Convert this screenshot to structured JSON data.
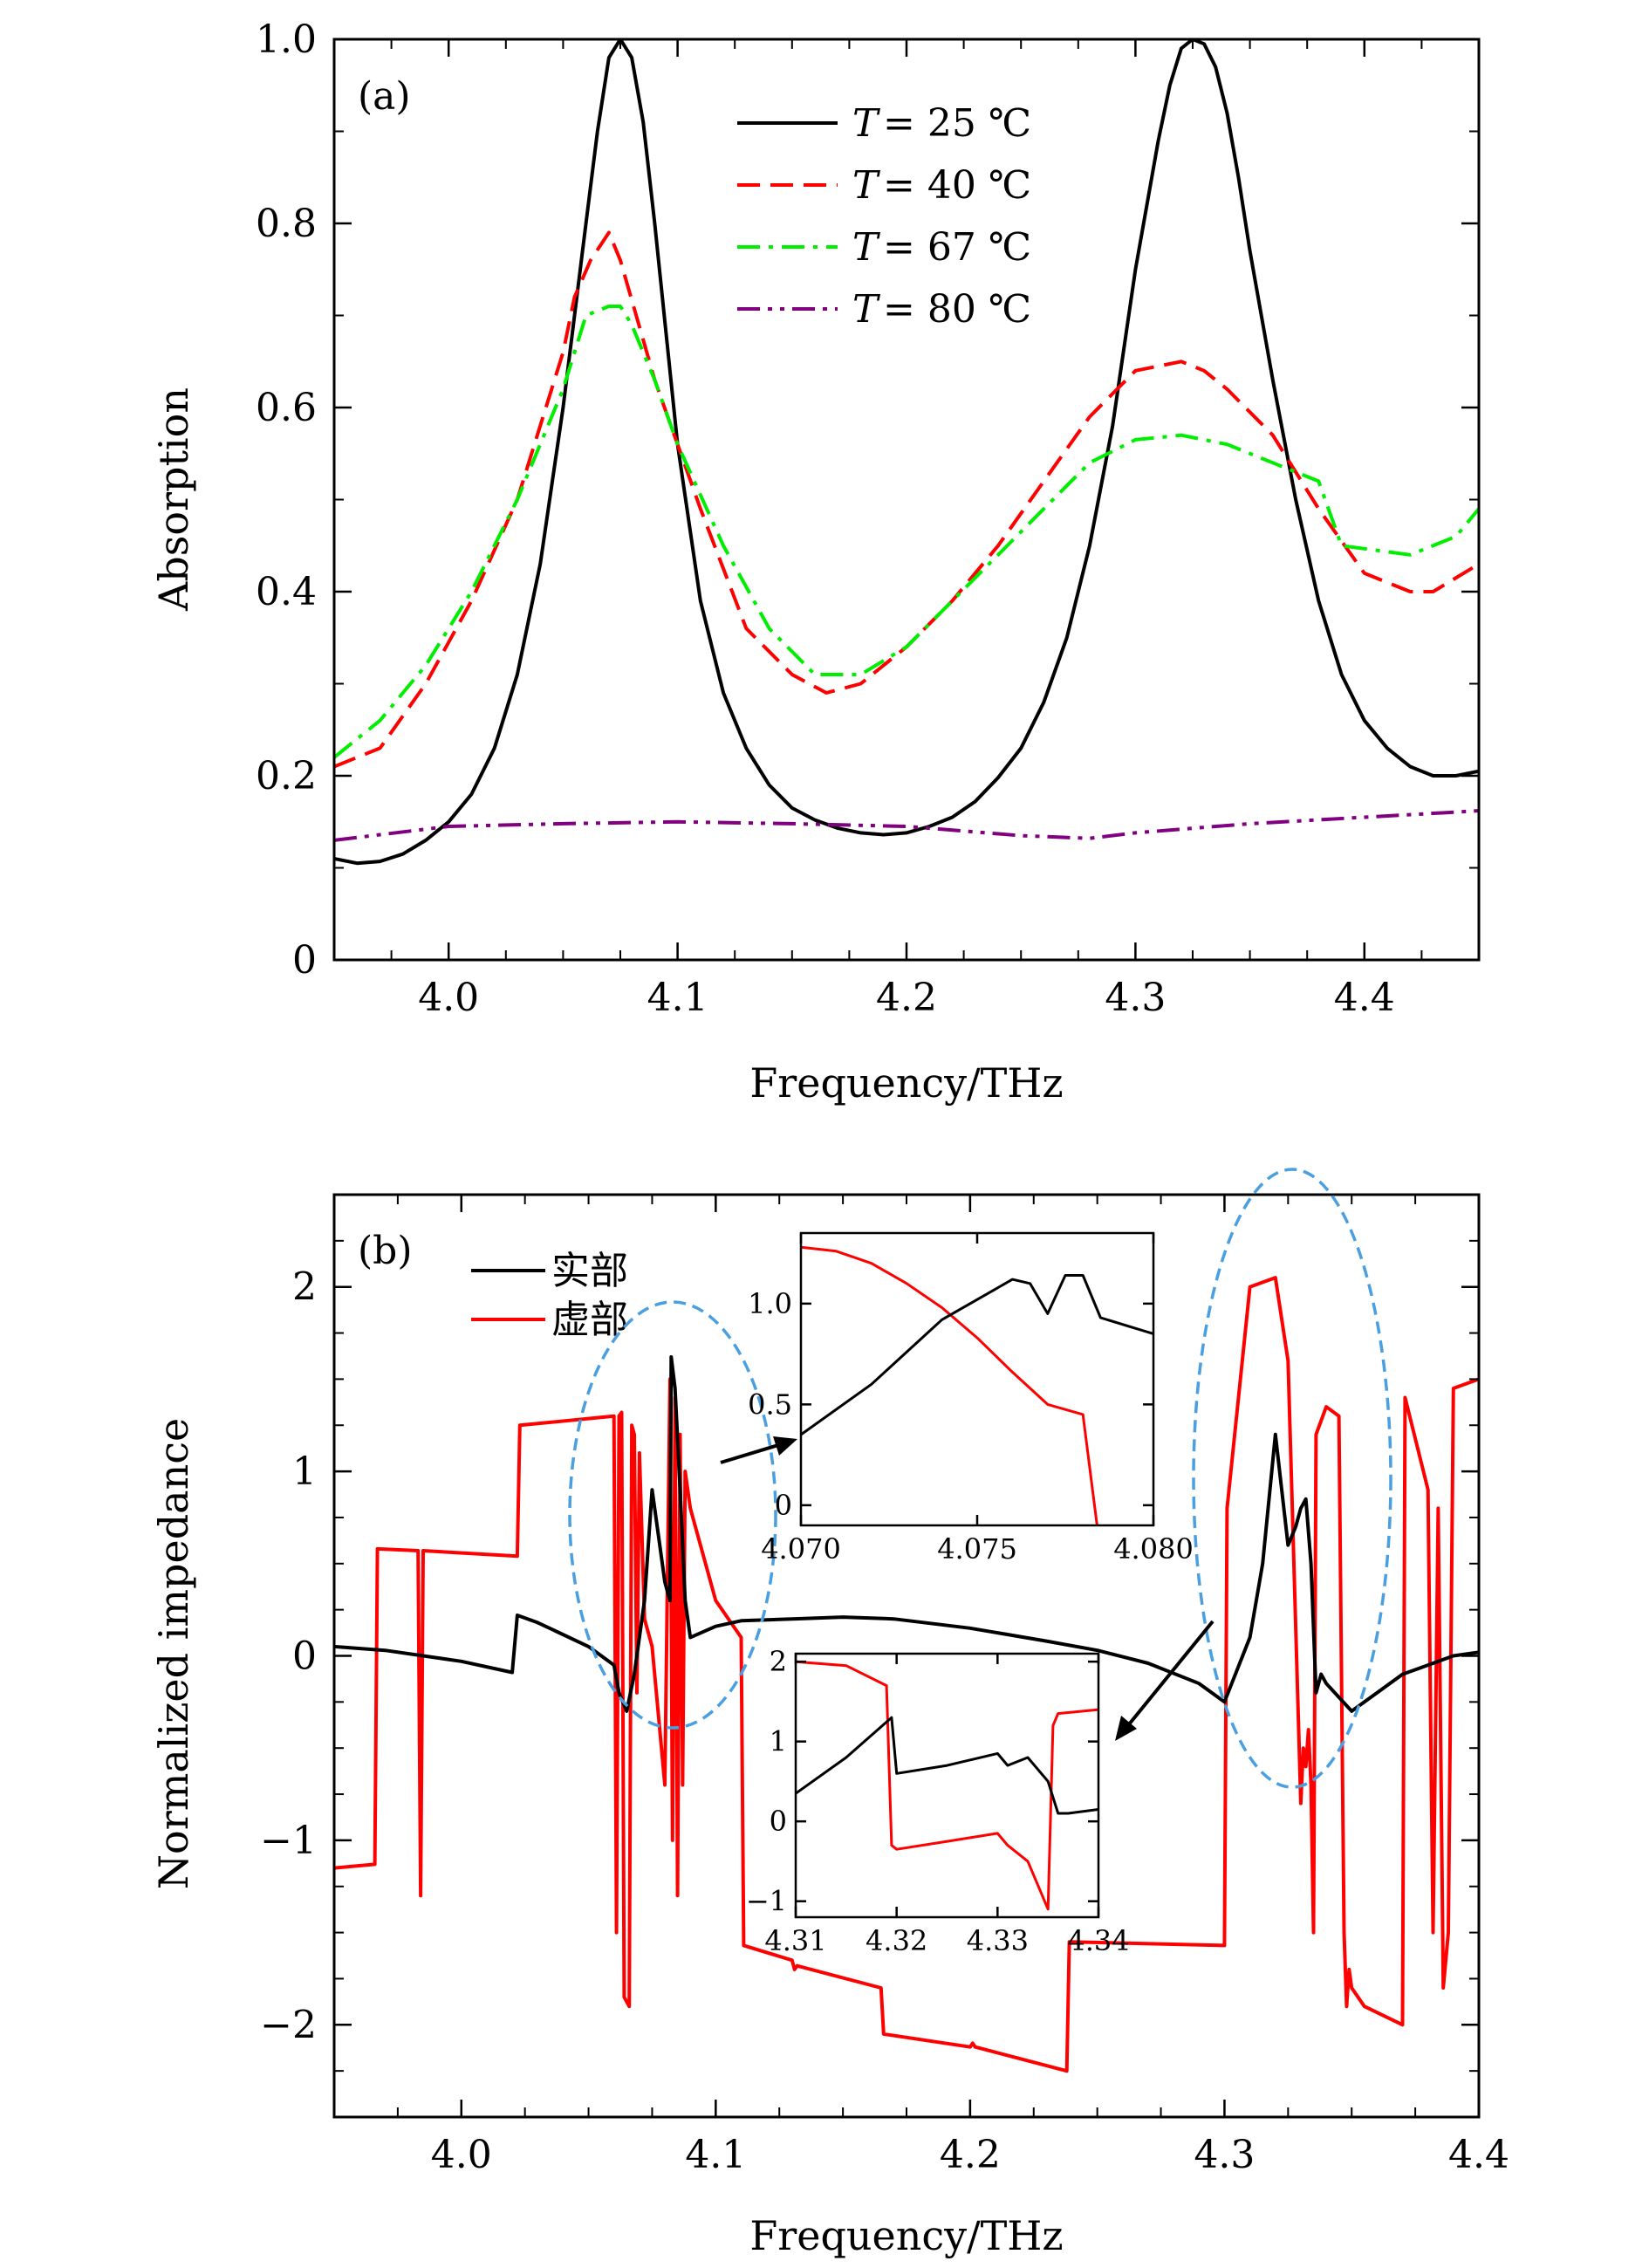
{
  "chart_data": [
    {
      "type": "line",
      "panel_label": "(a)",
      "xlabel": "Frequency/THz",
      "ylabel": "Absorption",
      "xlim": [
        3.95,
        4.45
      ],
      "ylim": [
        0,
        1.0
      ],
      "xticks": [
        4.0,
        4.1,
        4.2,
        4.3,
        4.4
      ],
      "xtick_labels": [
        "4.0",
        "4.1",
        "4.2",
        "4.3",
        "4.4"
      ],
      "yticks": [
        0,
        0.2,
        0.4,
        0.6,
        0.8,
        1.0
      ],
      "ytick_labels": [
        "0",
        "0.2",
        "0.4",
        "0.6",
        "0.8",
        "1.0"
      ],
      "legend_position": "top-center",
      "series": [
        {
          "name": "T = 25 ℃",
          "label_prefix": "T",
          "label_value": "= 25 ℃",
          "color": "#000000",
          "dash": "solid",
          "x": [
            3.95,
            3.96,
            3.97,
            3.98,
            3.99,
            4.0,
            4.01,
            4.02,
            4.03,
            4.04,
            4.05,
            4.06,
            4.065,
            4.07,
            4.075,
            4.08,
            4.085,
            4.09,
            4.1,
            4.11,
            4.12,
            4.13,
            4.14,
            4.15,
            4.16,
            4.17,
            4.18,
            4.19,
            4.2,
            4.21,
            4.22,
            4.23,
            4.24,
            4.25,
            4.26,
            4.27,
            4.28,
            4.29,
            4.3,
            4.31,
            4.315,
            4.32,
            4.325,
            4.33,
            4.335,
            4.34,
            4.345,
            4.35,
            4.36,
            4.37,
            4.38,
            4.39,
            4.4,
            4.41,
            4.42,
            4.43,
            4.44,
            4.45
          ],
          "y": [
            0.11,
            0.105,
            0.107,
            0.115,
            0.13,
            0.15,
            0.18,
            0.23,
            0.31,
            0.43,
            0.6,
            0.8,
            0.9,
            0.98,
            1.0,
            0.98,
            0.91,
            0.8,
            0.56,
            0.39,
            0.29,
            0.23,
            0.19,
            0.165,
            0.152,
            0.143,
            0.138,
            0.136,
            0.138,
            0.145,
            0.155,
            0.172,
            0.198,
            0.23,
            0.28,
            0.35,
            0.45,
            0.58,
            0.75,
            0.89,
            0.95,
            0.99,
            1.0,
            0.995,
            0.97,
            0.92,
            0.85,
            0.77,
            0.63,
            0.5,
            0.39,
            0.31,
            0.26,
            0.23,
            0.21,
            0.2,
            0.2,
            0.205
          ]
        },
        {
          "name": "T = 40 ℃",
          "label_prefix": "T",
          "label_value": "= 40 ℃",
          "color": "#ff0000",
          "dash": "dashed",
          "x": [
            3.95,
            3.97,
            3.99,
            4.01,
            4.03,
            4.05,
            4.055,
            4.062,
            4.07,
            4.075,
            4.09,
            4.11,
            4.13,
            4.15,
            4.165,
            4.18,
            4.2,
            4.22,
            4.24,
            4.26,
            4.28,
            4.3,
            4.32,
            4.33,
            4.34,
            4.36,
            4.38,
            4.4,
            4.42,
            4.43,
            4.45
          ],
          "y": [
            0.21,
            0.23,
            0.3,
            0.39,
            0.5,
            0.66,
            0.72,
            0.76,
            0.79,
            0.76,
            0.63,
            0.49,
            0.36,
            0.31,
            0.29,
            0.3,
            0.34,
            0.39,
            0.45,
            0.52,
            0.59,
            0.64,
            0.65,
            0.64,
            0.62,
            0.57,
            0.49,
            0.42,
            0.4,
            0.4,
            0.43
          ]
        },
        {
          "name": "T = 67 ℃",
          "label_prefix": "T",
          "label_value": "= 67 ℃",
          "color": "#00ee00",
          "dash": "dash-dot",
          "x": [
            3.95,
            3.97,
            3.99,
            4.01,
            4.03,
            4.05,
            4.06,
            4.07,
            4.075,
            4.08,
            4.09,
            4.1,
            4.12,
            4.14,
            4.16,
            4.18,
            4.2,
            4.22,
            4.24,
            4.26,
            4.28,
            4.3,
            4.32,
            4.34,
            4.36,
            4.38,
            4.39,
            4.42,
            4.44,
            4.45
          ],
          "y": [
            0.22,
            0.26,
            0.32,
            0.4,
            0.5,
            0.62,
            0.7,
            0.71,
            0.71,
            0.69,
            0.63,
            0.56,
            0.45,
            0.36,
            0.31,
            0.31,
            0.34,
            0.39,
            0.44,
            0.49,
            0.54,
            0.565,
            0.57,
            0.56,
            0.54,
            0.52,
            0.45,
            0.44,
            0.46,
            0.49
          ]
        },
        {
          "name": "T = 80 ℃",
          "label_prefix": "T",
          "label_value": "= 80 ℃",
          "color": "#800080",
          "dash": "dash-dot-dot",
          "x": [
            3.95,
            4.0,
            4.05,
            4.1,
            4.15,
            4.2,
            4.25,
            4.28,
            4.3,
            4.35,
            4.4,
            4.45
          ],
          "y": [
            0.13,
            0.145,
            0.148,
            0.15,
            0.148,
            0.145,
            0.135,
            0.132,
            0.138,
            0.148,
            0.155,
            0.162
          ]
        }
      ]
    },
    {
      "type": "line",
      "panel_label": "(b)",
      "xlabel": "Frequency/THz",
      "ylabel": "Normalized impedance",
      "xlim": [
        3.95,
        4.4
      ],
      "ylim": [
        -2.5,
        2.5
      ],
      "xticks": [
        4.0,
        4.1,
        4.2,
        4.3,
        4.4
      ],
      "xtick_labels": [
        "4.0",
        "4.1",
        "4.2",
        "4.3",
        "4.4"
      ],
      "yticks": [
        -2,
        -1,
        0,
        1,
        2
      ],
      "ytick_labels": [
        "−2",
        "−1",
        "0",
        "1",
        "2"
      ],
      "legend_position": "top-left",
      "series": [
        {
          "name": "实部",
          "color": "#000000",
          "x": [
            3.95,
            3.97,
            4.0,
            4.02,
            4.022,
            4.03,
            4.05,
            4.06,
            4.062,
            4.065,
            4.068,
            4.072,
            4.075,
            4.078,
            4.08,
            4.082,
            4.0825,
            4.084,
            4.086,
            4.088,
            4.09,
            4.1,
            4.11,
            4.13,
            4.15,
            4.17,
            4.2,
            4.23,
            4.25,
            4.27,
            4.29,
            4.3,
            4.31,
            4.315,
            4.32,
            4.325,
            4.328,
            4.33,
            4.332,
            4.334,
            4.336,
            4.338,
            4.34,
            4.35,
            4.36,
            4.37,
            4.38,
            4.39,
            4.4
          ],
          "y": [
            0.05,
            0.03,
            -0.03,
            -0.09,
            0.22,
            0.18,
            0.05,
            -0.05,
            -0.2,
            -0.3,
            -0.1,
            0.3,
            0.9,
            0.6,
            0.4,
            0.3,
            1.62,
            1.45,
            0.9,
            0.3,
            0.1,
            0.16,
            0.19,
            0.2,
            0.21,
            0.2,
            0.15,
            0.08,
            0.03,
            -0.04,
            -0.15,
            -0.25,
            0.1,
            0.5,
            1.2,
            0.6,
            0.7,
            0.8,
            0.85,
            0.5,
            -0.2,
            -0.1,
            -0.15,
            -0.3,
            -0.2,
            -0.1,
            -0.05,
            0.0,
            0.02
          ]
        },
        {
          "name": "虚部",
          "color": "#ff0000",
          "x": [
            3.95,
            3.966,
            3.967,
            3.983,
            3.984,
            3.985,
            4.022,
            4.023,
            4.06,
            4.061,
            4.062,
            4.063,
            4.064,
            4.066,
            4.067,
            4.068,
            4.069,
            4.07,
            4.072,
            4.075,
            4.078,
            4.08,
            4.082,
            4.083,
            4.084,
            4.085,
            4.086,
            4.087,
            4.088,
            4.09,
            4.1,
            4.11,
            4.111,
            4.13,
            4.131,
            4.132,
            4.165,
            4.166,
            4.2,
            4.201,
            4.202,
            4.238,
            4.239,
            4.3,
            4.301,
            4.31,
            4.32,
            4.325,
            4.33,
            4.331,
            4.332,
            4.333,
            4.334,
            4.335,
            4.336,
            4.34,
            4.345,
            4.347,
            4.348,
            4.349,
            4.35,
            4.355,
            4.37,
            4.371,
            4.38,
            4.382,
            4.384,
            4.386,
            4.388,
            4.39,
            4.4
          ],
          "y": [
            -1.15,
            -1.13,
            0.58,
            0.57,
            -1.3,
            0.57,
            0.54,
            1.25,
            1.3,
            -1.5,
            1.3,
            1.32,
            -1.85,
            -1.9,
            1.25,
            1.2,
            -0.2,
            1.1,
            0.2,
            0.05,
            -0.4,
            -0.7,
            1.5,
            -1.0,
            1.4,
            -1.3,
            1.2,
            -0.7,
            1.0,
            0.8,
            0.3,
            0.1,
            -1.57,
            -1.65,
            -1.7,
            -1.68,
            -1.8,
            -2.05,
            -2.12,
            -2.1,
            -2.12,
            -2.25,
            -1.55,
            -1.57,
            0.8,
            2.0,
            2.05,
            1.6,
            -0.8,
            -0.5,
            -0.6,
            -0.4,
            -0.7,
            -1.5,
            1.2,
            1.35,
            1.3,
            -1.5,
            -1.9,
            -1.7,
            -1.8,
            -1.9,
            -2.0,
            1.4,
            0.9,
            -1.5,
            0.8,
            -1.8,
            -1.5,
            1.45,
            1.5
          ]
        }
      ],
      "insets": [
        {
          "xlim": [
            4.07,
            4.08
          ],
          "ylim": [
            -0.1,
            1.35
          ],
          "xtick_labels": [
            "4.070",
            "4.075",
            "4.080"
          ],
          "xticks": [
            4.07,
            4.075,
            4.08
          ],
          "ytick_labels": [
            "0",
            "0.5",
            "1.0"
          ],
          "yticks": [
            0,
            0.5,
            1.0
          ],
          "series": [
            {
              "name": "实部",
              "color": "#000000",
              "x": [
                4.07,
                4.072,
                4.074,
                4.076,
                4.0765,
                4.077,
                4.0775,
                4.078,
                4.0785,
                4.08
              ],
              "y": [
                0.35,
                0.6,
                0.92,
                1.12,
                1.1,
                0.95,
                1.14,
                1.14,
                0.93,
                0.85
              ]
            },
            {
              "name": "虚部",
              "color": "#ff0000",
              "x": [
                4.07,
                4.071,
                4.072,
                4.073,
                4.074,
                4.075,
                4.076,
                4.077,
                4.078,
                4.0784
              ],
              "y": [
                1.28,
                1.26,
                1.2,
                1.1,
                0.98,
                0.83,
                0.66,
                0.5,
                0.45,
                -0.1
              ]
            }
          ]
        },
        {
          "xlim": [
            4.31,
            4.34
          ],
          "ylim": [
            -1.2,
            2.1
          ],
          "xtick_labels": [
            "4.31",
            "4.32",
            "4.33",
            "4.34"
          ],
          "xticks": [
            4.31,
            4.32,
            4.33,
            4.34
          ],
          "ytick_labels": [
            "−1",
            "0",
            "1",
            "2"
          ],
          "yticks": [
            -1,
            0,
            1,
            2
          ],
          "series": [
            {
              "name": "实部",
              "color": "#000000",
              "x": [
                4.31,
                4.315,
                4.3195,
                4.32,
                4.325,
                4.33,
                4.331,
                4.333,
                4.335,
                4.336,
                4.337,
                4.34
              ],
              "y": [
                0.35,
                0.8,
                1.3,
                0.6,
                0.7,
                0.85,
                0.7,
                0.8,
                0.5,
                0.1,
                0.1,
                0.15
              ]
            },
            {
              "name": "虚部",
              "color": "#ff0000",
              "x": [
                4.31,
                4.315,
                4.319,
                4.3195,
                4.32,
                4.325,
                4.33,
                4.331,
                4.333,
                4.335,
                4.3355,
                4.336,
                4.34
              ],
              "y": [
                2.0,
                1.95,
                1.7,
                -0.3,
                -0.35,
                -0.25,
                -0.15,
                -0.3,
                -0.5,
                -1.1,
                1.2,
                1.35,
                1.4
              ]
            }
          ]
        }
      ]
    }
  ]
}
